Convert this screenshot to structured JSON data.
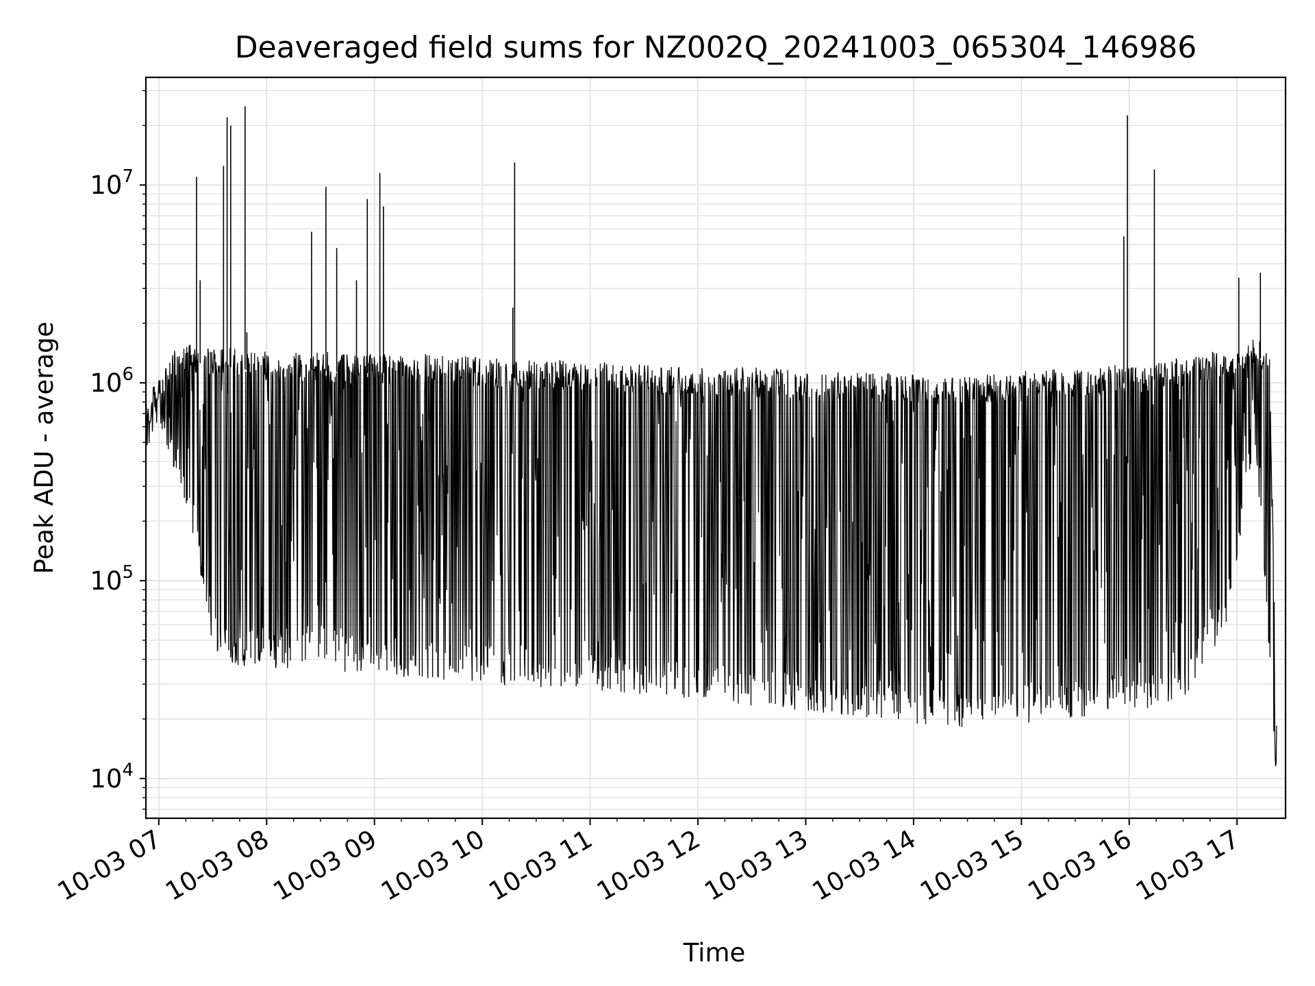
{
  "chart_data": {
    "type": "line",
    "title": "Deaveraged field sums for NZ002Q_20241003_065304_146986",
    "xlabel": "Time",
    "ylabel": "Peak ADU - average",
    "yscale": "log",
    "ylim": [
      6300,
      35000000
    ],
    "xlim_hours": [
      6.88,
      17.45
    ],
    "x_ticks": [
      "10-03 07",
      "10-03 08",
      "10-03 09",
      "10-03 10",
      "10-03 11",
      "10-03 12",
      "10-03 13",
      "10-03 14",
      "10-03 15",
      "10-03 16",
      "10-03 17"
    ],
    "y_ticks": [
      {
        "base": "10",
        "exp": "4",
        "value": 10000
      },
      {
        "base": "10",
        "exp": "5",
        "value": 100000
      },
      {
        "base": "10",
        "exp": "6",
        "value": 1000000
      },
      {
        "base": "10",
        "exp": "7",
        "value": 10000000
      }
    ],
    "grid": true,
    "line_color": "#000000",
    "grid_color": "#e5e5e5",
    "series": [
      {
        "x": [
          "06:53",
          "07:00",
          "07:08",
          "07:15",
          "07:20",
          "07:25",
          "07:30",
          "07:40",
          "07:50",
          "08:00",
          "08:15",
          "08:30",
          "08:45",
          "09:00",
          "09:30",
          "10:00",
          "10:30",
          "11:00",
          "11:30",
          "12:00",
          "12:30",
          "13:00",
          "13:30",
          "14:00",
          "14:30",
          "15:00",
          "15:30",
          "16:00",
          "16:30",
          "16:55",
          "17:10",
          "17:18",
          "17:22"
        ],
        "low": [
          450000,
          600000,
          380000,
          250000,
          150000,
          90000,
          45000,
          38000,
          36000,
          35000,
          36000,
          38000,
          34000,
          33000,
          32000,
          30000,
          29000,
          27000,
          26000,
          25000,
          23000,
          22000,
          20000,
          19000,
          18000,
          19000,
          20000,
          22000,
          24000,
          60000,
          500000,
          40000,
          9500
        ],
        "high": [
          800000,
          1100000,
          1500000,
          1600000,
          1600000,
          1550000,
          1500000,
          1500000,
          1450000,
          1450000,
          1450000,
          1450000,
          1400000,
          1400000,
          1400000,
          1350000,
          1300000,
          1300000,
          1250000,
          1200000,
          1200000,
          1150000,
          1150000,
          1100000,
          1100000,
          1150000,
          1200000,
          1250000,
          1350000,
          1500000,
          1700000,
          1600000,
          22000
        ],
        "spikes": [
          {
            "x": "07:21",
            "y": 11000000
          },
          {
            "x": "07:23",
            "y": 3300000
          },
          {
            "x": "07:36",
            "y": 12500000
          },
          {
            "x": "07:38",
            "y": 22000000
          },
          {
            "x": "07:40",
            "y": 20000000
          },
          {
            "x": "07:48",
            "y": 25000000
          },
          {
            "x": "07:49",
            "y": 1800000
          },
          {
            "x": "08:25",
            "y": 5800000
          },
          {
            "x": "08:33",
            "y": 9800000
          },
          {
            "x": "08:39",
            "y": 4800000
          },
          {
            "x": "08:50",
            "y": 3300000
          },
          {
            "x": "08:56",
            "y": 8500000
          },
          {
            "x": "09:03",
            "y": 11500000
          },
          {
            "x": "09:05",
            "y": 7800000
          },
          {
            "x": "10:18",
            "y": 13000000
          },
          {
            "x": "10:17",
            "y": 2400000
          },
          {
            "x": "15:57",
            "y": 5500000
          },
          {
            "x": "15:59",
            "y": 22500000
          },
          {
            "x": "16:14",
            "y": 12000000
          },
          {
            "x": "17:01",
            "y": 3400000
          },
          {
            "x": "17:13",
            "y": 3600000
          }
        ]
      }
    ]
  }
}
